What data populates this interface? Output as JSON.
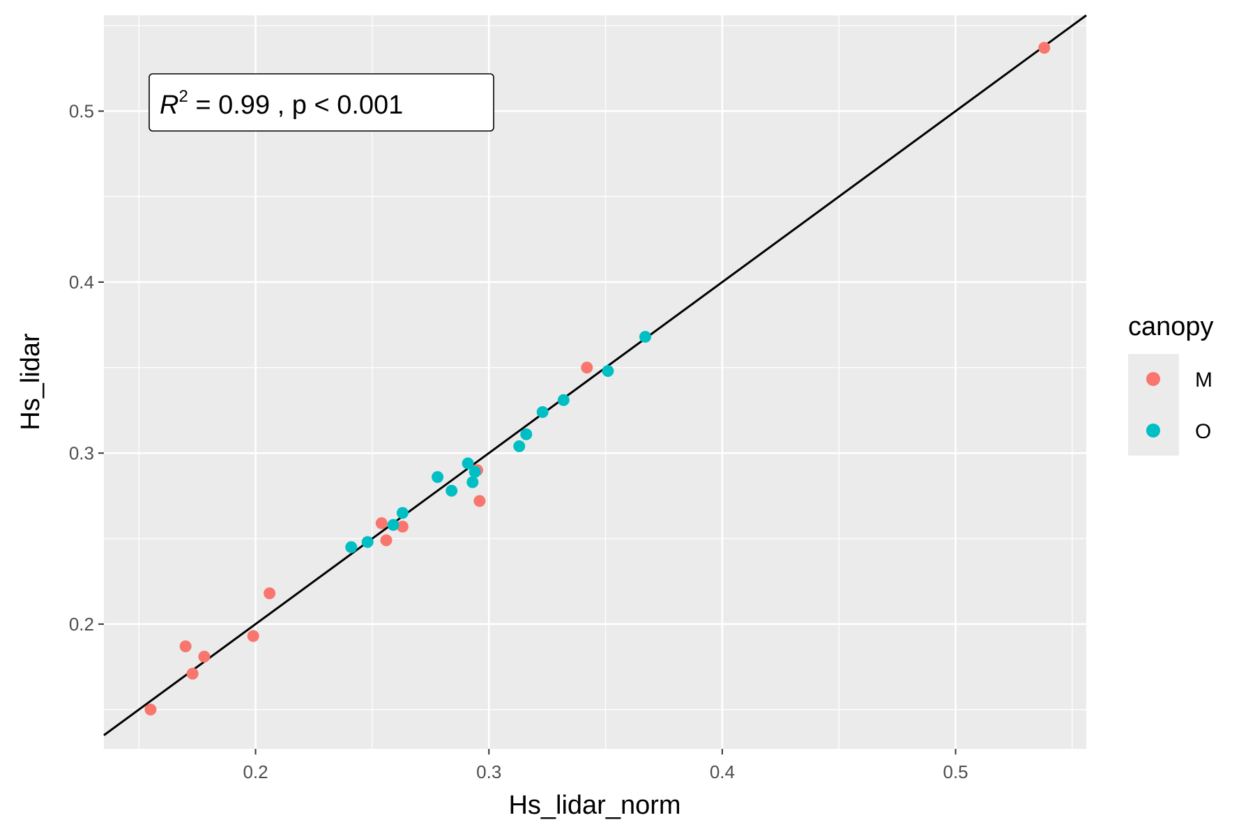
{
  "chart_data": {
    "type": "scatter",
    "xlabel": "Hs_lidar_norm",
    "ylabel": "Hs_lidar",
    "xlim": [
      0.135,
      0.556
    ],
    "ylim": [
      0.127,
      0.556
    ],
    "x_ticks": [
      0.2,
      0.3,
      0.4,
      0.5
    ],
    "y_ticks": [
      0.2,
      0.3,
      0.4,
      0.5
    ],
    "x_tick_labels": [
      "0.2",
      "0.3",
      "0.4",
      "0.5"
    ],
    "y_tick_labels": [
      "0.2",
      "0.3",
      "0.4",
      "0.5"
    ],
    "grid": true,
    "legend": {
      "title": "canopy",
      "placement": "right"
    },
    "annotation": {
      "r_symbol": "R",
      "exponent": "2",
      "rest": " = 0.99 ,  p < 0.001"
    },
    "reference_line": {
      "type": "identity",
      "slope": 1,
      "intercept": 0
    },
    "series": [
      {
        "name": "M",
        "color": "#F8766D",
        "points": [
          [
            0.155,
            0.15
          ],
          [
            0.17,
            0.187
          ],
          [
            0.173,
            0.171
          ],
          [
            0.178,
            0.181
          ],
          [
            0.199,
            0.193
          ],
          [
            0.206,
            0.218
          ],
          [
            0.254,
            0.259
          ],
          [
            0.256,
            0.249
          ],
          [
            0.263,
            0.257
          ],
          [
            0.295,
            0.29
          ],
          [
            0.296,
            0.272
          ],
          [
            0.342,
            0.35
          ],
          [
            0.538,
            0.537
          ]
        ]
      },
      {
        "name": "O",
        "color": "#00BFC4",
        "points": [
          [
            0.241,
            0.245
          ],
          [
            0.248,
            0.248
          ],
          [
            0.259,
            0.258
          ],
          [
            0.263,
            0.265
          ],
          [
            0.278,
            0.286
          ],
          [
            0.284,
            0.278
          ],
          [
            0.291,
            0.294
          ],
          [
            0.293,
            0.283
          ],
          [
            0.294,
            0.289
          ],
          [
            0.313,
            0.304
          ],
          [
            0.316,
            0.311
          ],
          [
            0.323,
            0.324
          ],
          [
            0.332,
            0.331
          ],
          [
            0.351,
            0.348
          ],
          [
            0.367,
            0.368
          ]
        ]
      }
    ]
  }
}
